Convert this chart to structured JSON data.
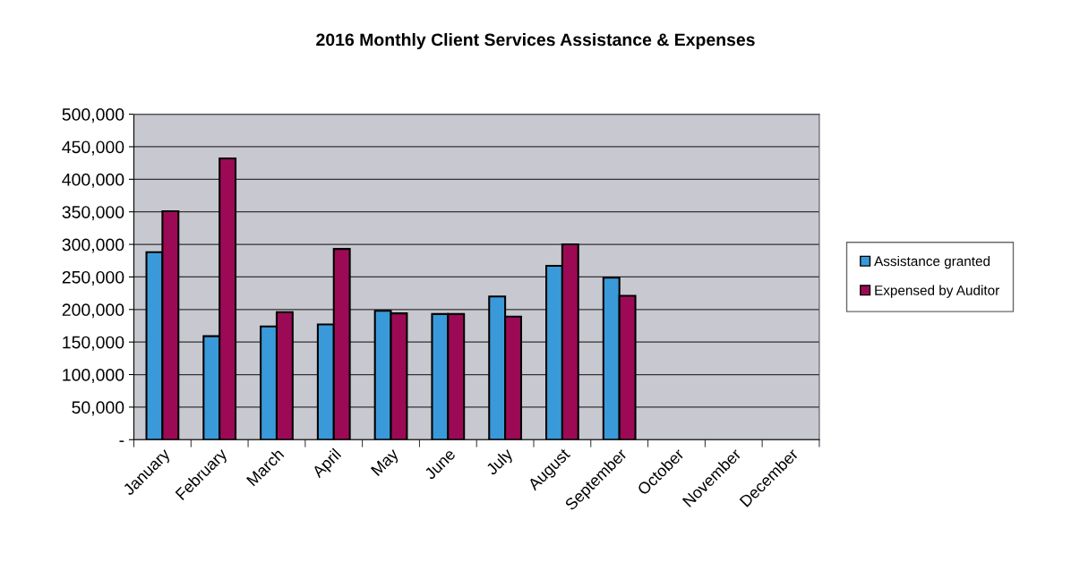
{
  "chart_data": {
    "type": "bar",
    "title": "2016 Monthly Client Services Assistance & Expenses",
    "categories": [
      "January",
      "February",
      "March",
      "April",
      "May",
      "June",
      "July",
      "August",
      "September",
      "October",
      "November",
      "December"
    ],
    "series": [
      {
        "name": "Assistance granted",
        "color": "#3a9ad9",
        "values": [
          288000,
          159000,
          174000,
          177000,
          198000,
          193000,
          220000,
          267000,
          249000,
          null,
          null,
          null
        ]
      },
      {
        "name": "Expensed by Auditor",
        "color": "#9c0a55",
        "values": [
          351000,
          432000,
          196000,
          293000,
          194000,
          193000,
          189000,
          300000,
          221000,
          null,
          null,
          null
        ]
      }
    ],
    "ylim": [
      0,
      500000
    ],
    "yticks": [
      {
        "value": 0,
        "label": "-"
      },
      {
        "value": 50000,
        "label": "50,000"
      },
      {
        "value": 100000,
        "label": "100,000"
      },
      {
        "value": 150000,
        "label": "150,000"
      },
      {
        "value": 200000,
        "label": "200,000"
      },
      {
        "value": 250000,
        "label": "250,000"
      },
      {
        "value": 300000,
        "label": "300,000"
      },
      {
        "value": 350000,
        "label": "350,000"
      },
      {
        "value": 400000,
        "label": "400,000"
      },
      {
        "value": 450000,
        "label": "450,000"
      },
      {
        "value": 500000,
        "label": "500,000"
      }
    ],
    "grid": "y",
    "legend": "right"
  }
}
